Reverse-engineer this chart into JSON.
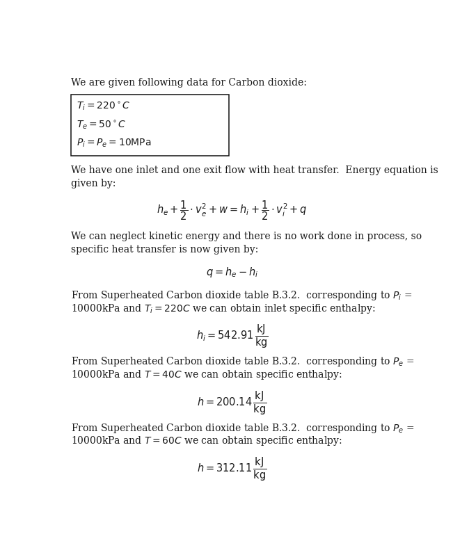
{
  "bg_color": "#ffffff",
  "text_color": "#1a1a1a",
  "font_size": 10.0,
  "eq_font_size": 10.5,
  "fig_width": 6.51,
  "fig_height": 7.88,
  "dpi": 100,
  "line1": "We are given following data for Carbon dioxide:",
  "box_lines": [
    "$T_i = 220^\\circ C$",
    "$T_e = 50^\\circ C$",
    "$P_i = P_e = 10\\mathrm{MPa}$"
  ],
  "para1_line1": "We have one inlet and one exit flow with heat transfer.  Energy equation is",
  "para1_line2": "given by:",
  "eq1": "$h_e + \\dfrac{1}{2} \\cdot v_e^2 + w = h_i + \\dfrac{1}{2} \\cdot v_i^2 + q$",
  "para2_line1": "We can neglect kinetic energy and there is no work done in process, so",
  "para2_line2": "specific heat transfer is now given by:",
  "eq2": "$q = h_e - h_i$",
  "para3_line1": "From Superheated Carbon dioxide table B.3.2.  corresponding to $P_i$ =",
  "para3_line2": "10000kPa and $T_i = 220C$ we can obtain inlet specific enthalpy:",
  "eq3": "$h_i = 542.91\\,\\dfrac{\\mathrm{kJ}}{\\mathrm{kg}}$",
  "para4_line1": "From Superheated Carbon dioxide table B.3.2.  corresponding to $P_e$ =",
  "para4_line2": "10000kPa and $T = 40C$ we can obtain specific enthalpy:",
  "eq4": "$h = 200.14\\,\\dfrac{\\mathrm{kJ}}{\\mathrm{kg}}$",
  "para5_line1": "From Superheated Carbon dioxide table B.3.2.  corresponding to $P_e$ =",
  "para5_line2": "10000kPa and $T = 60C$ we can obtain specific enthalpy:",
  "eq5": "$h = 312.11\\,\\dfrac{\\mathrm{kJ}}{\\mathrm{kg}}$"
}
